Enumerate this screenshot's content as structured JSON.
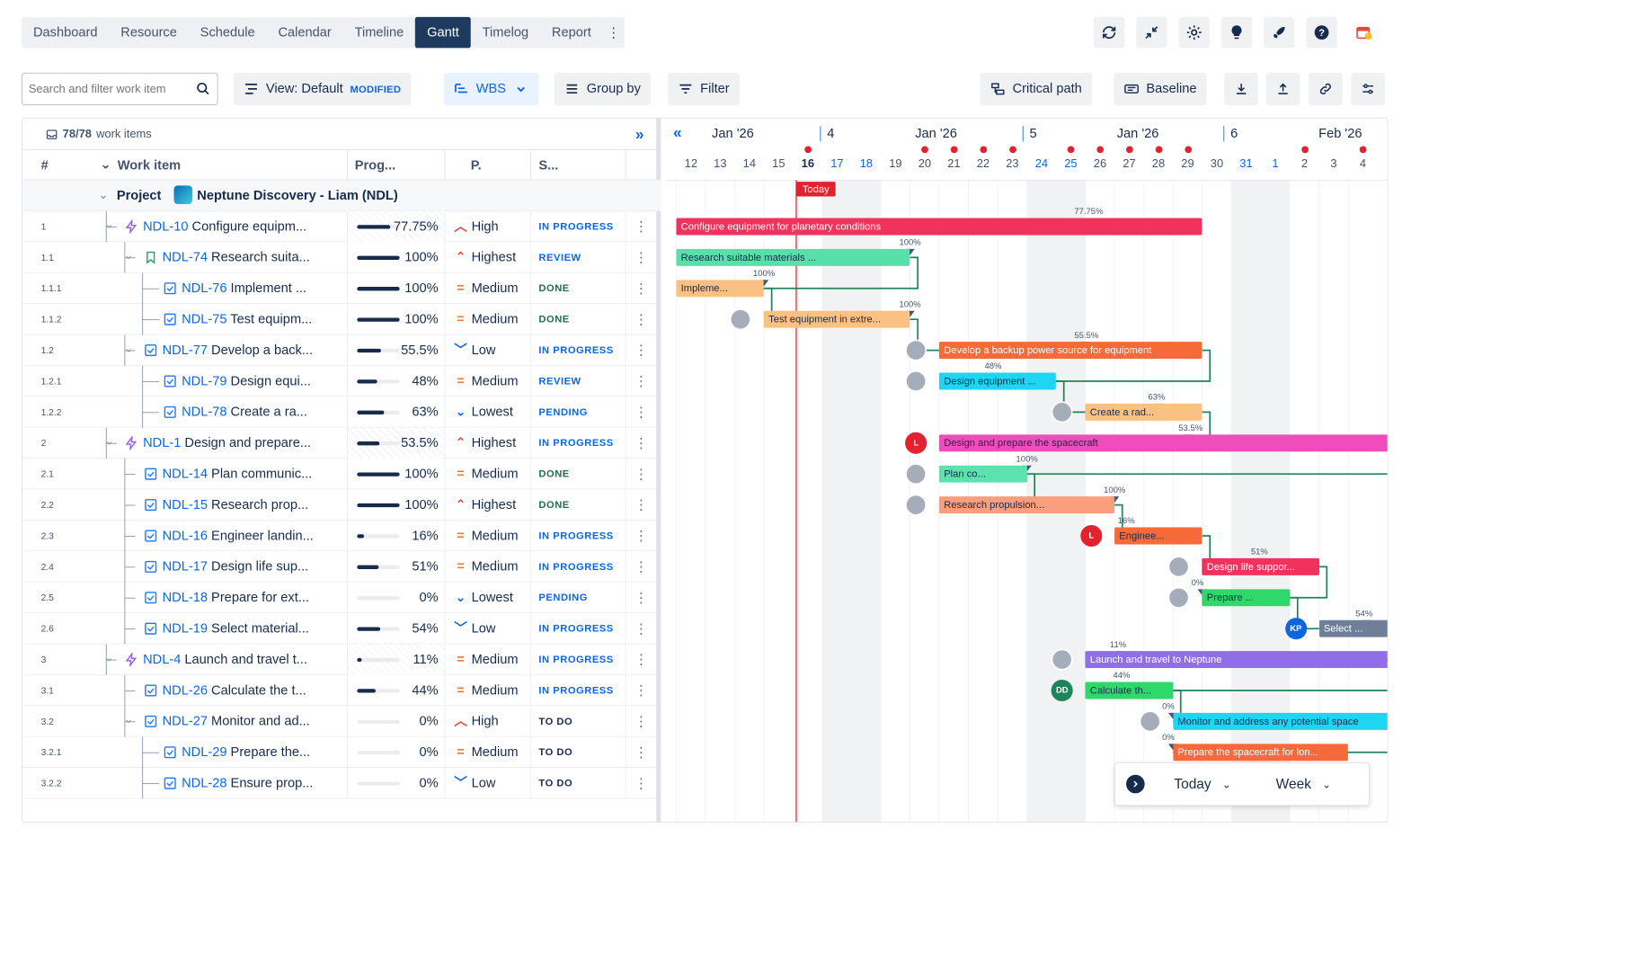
{
  "nav": {
    "tabs": [
      "Dashboard",
      "Resource",
      "Schedule",
      "Calendar",
      "Timeline",
      "Gantt",
      "Timelog",
      "Report"
    ],
    "active": "Gantt"
  },
  "toolbar": {
    "search_placeholder": "Search and filter work item",
    "view_label": "View: Default",
    "view_badge": "MODIFIED",
    "wbs_label": "WBS",
    "group_label": "Group by",
    "filter_label": "Filter",
    "critical_label": "Critical path",
    "baseline_label": "Baseline"
  },
  "grid": {
    "count_bold": "78/78",
    "count_text": "work items",
    "col_num": "#",
    "col_item": "Work item",
    "col_prog": "Prog...",
    "col_pri": "P.",
    "col_status": "S...",
    "project_prefix": "Project",
    "project_name": "Neptune Discovery - Liam (NDL)",
    "rows": [
      {
        "num": "1",
        "key": "NDL-10",
        "title": "Configure equipm...",
        "prog": "77.75%",
        "pri": "High",
        "status": "IN PROGRESS"
      },
      {
        "num": "1.1",
        "key": "NDL-74",
        "title": "Research suita...",
        "prog": "100%",
        "pri": "Highest",
        "status": "REVIEW"
      },
      {
        "num": "1.1.1",
        "key": "NDL-76",
        "title": "Implement ...",
        "prog": "100%",
        "pri": "Medium",
        "status": "DONE"
      },
      {
        "num": "1.1.2",
        "key": "NDL-75",
        "title": "Test equipm...",
        "prog": "100%",
        "pri": "Medium",
        "status": "DONE"
      },
      {
        "num": "1.2",
        "key": "NDL-77",
        "title": "Develop a back...",
        "prog": "55.5%",
        "pri": "Low",
        "status": "IN PROGRESS"
      },
      {
        "num": "1.2.1",
        "key": "NDL-79",
        "title": "Design equi...",
        "prog": "48%",
        "pri": "Medium",
        "status": "REVIEW"
      },
      {
        "num": "1.2.2",
        "key": "NDL-78",
        "title": "Create a ra...",
        "prog": "63%",
        "pri": "Lowest",
        "status": "PENDING"
      },
      {
        "num": "2",
        "key": "NDL-1",
        "title": "Design and prepare...",
        "prog": "53.5%",
        "pri": "Highest",
        "status": "IN PROGRESS"
      },
      {
        "num": "2.1",
        "key": "NDL-14",
        "title": "Plan communic...",
        "prog": "100%",
        "pri": "Medium",
        "status": "DONE"
      },
      {
        "num": "2.2",
        "key": "NDL-15",
        "title": "Research prop...",
        "prog": "100%",
        "pri": "Highest",
        "status": "DONE"
      },
      {
        "num": "2.3",
        "key": "NDL-16",
        "title": "Engineer landin...",
        "prog": "16%",
        "pri": "Medium",
        "status": "IN PROGRESS"
      },
      {
        "num": "2.4",
        "key": "NDL-17",
        "title": "Design life sup...",
        "prog": "51%",
        "pri": "Medium",
        "status": "IN PROGRESS"
      },
      {
        "num": "2.5",
        "key": "NDL-18",
        "title": "Prepare for ext...",
        "prog": "0%",
        "pri": "Lowest",
        "status": "PENDING"
      },
      {
        "num": "2.6",
        "key": "NDL-19",
        "title": "Select material...",
        "prog": "54%",
        "pri": "Low",
        "status": "IN PROGRESS"
      },
      {
        "num": "3",
        "key": "NDL-4",
        "title": "Launch and travel t...",
        "prog": "11%",
        "pri": "Medium",
        "status": "IN PROGRESS"
      },
      {
        "num": "3.1",
        "key": "NDL-26",
        "title": "Calculate the t...",
        "prog": "44%",
        "pri": "Medium",
        "status": "IN PROGRESS"
      },
      {
        "num": "3.2",
        "key": "NDL-27",
        "title": "Monitor and ad...",
        "prog": "0%",
        "pri": "High",
        "status": "TO DO"
      },
      {
        "num": "3.2.1",
        "key": "NDL-29",
        "title": "Prepare the...",
        "prog": "0%",
        "pri": "Medium",
        "status": "TO DO"
      },
      {
        "num": "3.2.2",
        "key": "NDL-28",
        "title": "Ensure prop...",
        "prog": "0%",
        "pri": "Low",
        "status": "TO DO"
      }
    ]
  },
  "timeline": {
    "months": [
      {
        "label": "Jan '26",
        "week": "4"
      },
      {
        "label": "Jan '26",
        "week": "5"
      },
      {
        "label": "Jan '26",
        "week": "6"
      },
      {
        "label": "Feb '26",
        "week": ""
      }
    ],
    "days": [
      "12",
      "13",
      "14",
      "15",
      "16",
      "17",
      "18",
      "19",
      "20",
      "21",
      "22",
      "23",
      "24",
      "25",
      "26",
      "27",
      "28",
      "29",
      "30",
      "31",
      "1",
      "2",
      "3",
      "4"
    ],
    "today_label": "Today",
    "bars": [
      {
        "label": "Configure equipment for planetary conditions",
        "pct": "77.75%",
        "color": "#f0325c"
      },
      {
        "label": "Research suitable materials ...",
        "pct": "100%",
        "color": "#57e0a9"
      },
      {
        "label": "Impleme...",
        "pct": "100%",
        "color": "#fbc183"
      },
      {
        "label": "Test equipment in extre...",
        "pct": "100%",
        "color": "#fbc183"
      },
      {
        "label": "Develop a backup power source for equipment",
        "pct": "55.5%",
        "color": "#f56a38"
      },
      {
        "label": "Design equipment ...",
        "pct": "48%",
        "color": "#1ed5f2"
      },
      {
        "label": "Create a rad...",
        "pct": "63%",
        "color": "#fbc183"
      },
      {
        "label": "Design and prepare the spacecraft",
        "pct": "53.5%",
        "color": "#ee4dbb"
      },
      {
        "label": "Plan co...",
        "pct": "100%",
        "color": "#5de2ad"
      },
      {
        "label": "Research propulsion...",
        "pct": "100%",
        "color": "#fb9e7e"
      },
      {
        "label": "Enginee...",
        "pct": "16%",
        "color": "#f56a38"
      },
      {
        "label": "Design life suppor...",
        "pct": "51%",
        "color": "#f0325c"
      },
      {
        "label": "Prepare ...",
        "pct": "0%",
        "color": "#2fd86b"
      },
      {
        "label": "Select ...",
        "pct": "54%",
        "color": "#6f7f9a"
      },
      {
        "label": "Launch and travel to Neptune",
        "pct": "11%",
        "color": "#8f6ee8"
      },
      {
        "label": "Calculate th...",
        "pct": "44%",
        "color": "#2fd86b"
      },
      {
        "label": "Monitor and address any potential space",
        "pct": "0%",
        "color": "#1ed5f2"
      },
      {
        "label": "Prepare the spacecraft for lon...",
        "pct": "0%",
        "color": "#f56a38"
      }
    ],
    "avatars": [
      "L",
      "L",
      "KP",
      "DD"
    ]
  },
  "footer": {
    "today_btn": "Today",
    "scale": "Week"
  }
}
